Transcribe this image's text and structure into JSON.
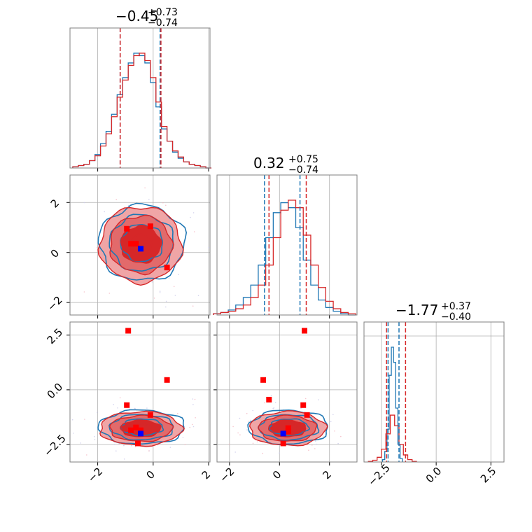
{
  "figure": {
    "colors": {
      "red": "#d62728",
      "blue": "#1f77b4",
      "fill_light": "#f0a5a6",
      "fill_dark": "#d62728",
      "grid": "#b0b0b0",
      "frame": "#808080"
    }
  },
  "titles": {
    "p0": {
      "main": "−0.45",
      "sup": "+0.73",
      "sub": "−0.74"
    },
    "p1": {
      "main": "0.32",
      "sup": "+0.75",
      "sub": "−0.74"
    },
    "p2": {
      "main": "−1.77",
      "sup": "+0.37",
      "sub": "−0.40"
    }
  },
  "chart_data": {
    "type": "scatter",
    "layout": "corner",
    "parameters": [
      {
        "range": [
          -3.0,
          2.05
        ],
        "ticks": [
          -2,
          0,
          2
        ],
        "tick_labels": [
          "−2",
          "0",
          "2"
        ]
      },
      {
        "range": [
          -2.5,
          3.1
        ],
        "ticks": [
          -2,
          0,
          2
        ],
        "tick_labels": [
          "−2",
          "0",
          "2"
        ]
      },
      {
        "range": [
          -3.3,
          3.1
        ],
        "ticks": [
          -2.5,
          0.0,
          2.5
        ],
        "tick_labels": [
          "−2.5",
          "0.0",
          "2.5"
        ]
      }
    ],
    "marginals": [
      {
        "param": 0,
        "quantiles_red": [
          -1.19,
          0.28
        ],
        "quantiles_blue": [
          -1.19,
          0.25
        ],
        "red_x": [
          -2.8,
          -2.6,
          -2.4,
          -2.2,
          -2.0,
          -1.8,
          -1.6,
          -1.4,
          -1.2,
          -1.0,
          -0.8,
          -0.6,
          -0.4,
          -0.2,
          0.0,
          0.2,
          0.4,
          0.6,
          0.8,
          1.0,
          1.2,
          1.4,
          1.6,
          1.8,
          2.0
        ],
        "red_y": [
          1,
          2,
          3,
          6,
          10,
          18,
          28,
          42,
          58,
          72,
          84,
          92,
          94,
          88,
          74,
          54,
          34,
          22,
          14,
          9,
          5,
          3,
          2,
          1,
          0
        ],
        "blue_y": [
          1,
          2,
          3,
          6,
          11,
          20,
          30,
          44,
          60,
          74,
          86,
          94,
          92,
          86,
          70,
          50,
          32,
          22,
          13,
          8,
          5,
          3,
          2,
          1,
          0
        ]
      },
      {
        "param": 1,
        "quantiles_red": [
          -0.42,
          1.07
        ],
        "quantiles_blue": [
          -0.6,
          0.82
        ],
        "red_x": [
          -2.5,
          -2.2,
          -1.9,
          -1.6,
          -1.3,
          -1.0,
          -0.7,
          -0.4,
          -0.1,
          0.2,
          0.5,
          0.8,
          1.1,
          1.4,
          1.7,
          2.0,
          2.3,
          2.6,
          2.9
        ],
        "red_y": [
          1,
          2,
          3,
          5,
          8,
          14,
          24,
          40,
          62,
          84,
          92,
          86,
          64,
          40,
          22,
          11,
          5,
          2,
          1
        ],
        "blue_y": [
          1,
          2,
          4,
          8,
          14,
          24,
          40,
          62,
          82,
          90,
          86,
          70,
          44,
          24,
          12,
          6,
          3,
          1,
          0
        ]
      },
      {
        "param": 2,
        "quantiles_red": [
          -2.27,
          -1.4
        ],
        "quantiles_blue": [
          -2.2,
          -1.7
        ],
        "red_x": [
          -3.0,
          -2.8,
          -2.6,
          -2.4,
          -2.2,
          -2.0,
          -1.8,
          -1.6,
          -1.4,
          -1.2,
          -1.0
        ],
        "red_y": [
          1,
          3,
          8,
          22,
          48,
          80,
          62,
          30,
          12,
          4,
          1
        ],
        "blue_x": [
          -2.4,
          -2.3,
          -2.2,
          -2.1,
          -2.0,
          -1.9,
          -1.8,
          -1.7,
          -1.6
        ],
        "blue_y": [
          4,
          18,
          56,
          148,
          196,
          170,
          92,
          30,
          6
        ]
      }
    ],
    "joint": [
      {
        "x_param": 0,
        "y_param": 1,
        "center": [
          -0.45,
          0.32
        ],
        "sigma": [
          0.72,
          0.74
        ],
        "blue_marker": [
          -0.45,
          0.15
        ],
        "red_markers": [
          [
            -0.95,
            0.95
          ],
          [
            -0.8,
            0.35
          ],
          [
            -0.62,
            0.35
          ],
          [
            -0.1,
            1.05
          ],
          [
            0.5,
            -0.6
          ]
        ]
      },
      {
        "x_param": 0,
        "y_param": 2,
        "center": [
          -0.45,
          -1.77
        ],
        "sigma": [
          0.72,
          0.38
        ],
        "blue_marker": [
          -0.45,
          -2.0
        ],
        "red_markers": [
          [
            -0.9,
            2.7
          ],
          [
            0.5,
            0.45
          ],
          [
            -0.95,
            -0.7
          ],
          [
            -0.1,
            -1.15
          ],
          [
            -0.8,
            -1.85
          ],
          [
            -0.62,
            -1.72
          ],
          [
            -0.45,
            -1.85
          ],
          [
            -0.55,
            -2.45
          ]
        ]
      },
      {
        "x_param": 1,
        "y_param": 2,
        "center": [
          0.32,
          -1.77
        ],
        "sigma": [
          0.74,
          0.38
        ],
        "blue_marker": [
          0.15,
          -2.0
        ],
        "red_markers": [
          [
            1.0,
            2.7
          ],
          [
            -0.65,
            0.45
          ],
          [
            -0.42,
            -0.45
          ],
          [
            0.95,
            -0.7
          ],
          [
            1.1,
            -1.15
          ],
          [
            0.35,
            -1.75
          ],
          [
            0.35,
            -1.9
          ],
          [
            0.15,
            -2.45
          ]
        ]
      }
    ]
  }
}
